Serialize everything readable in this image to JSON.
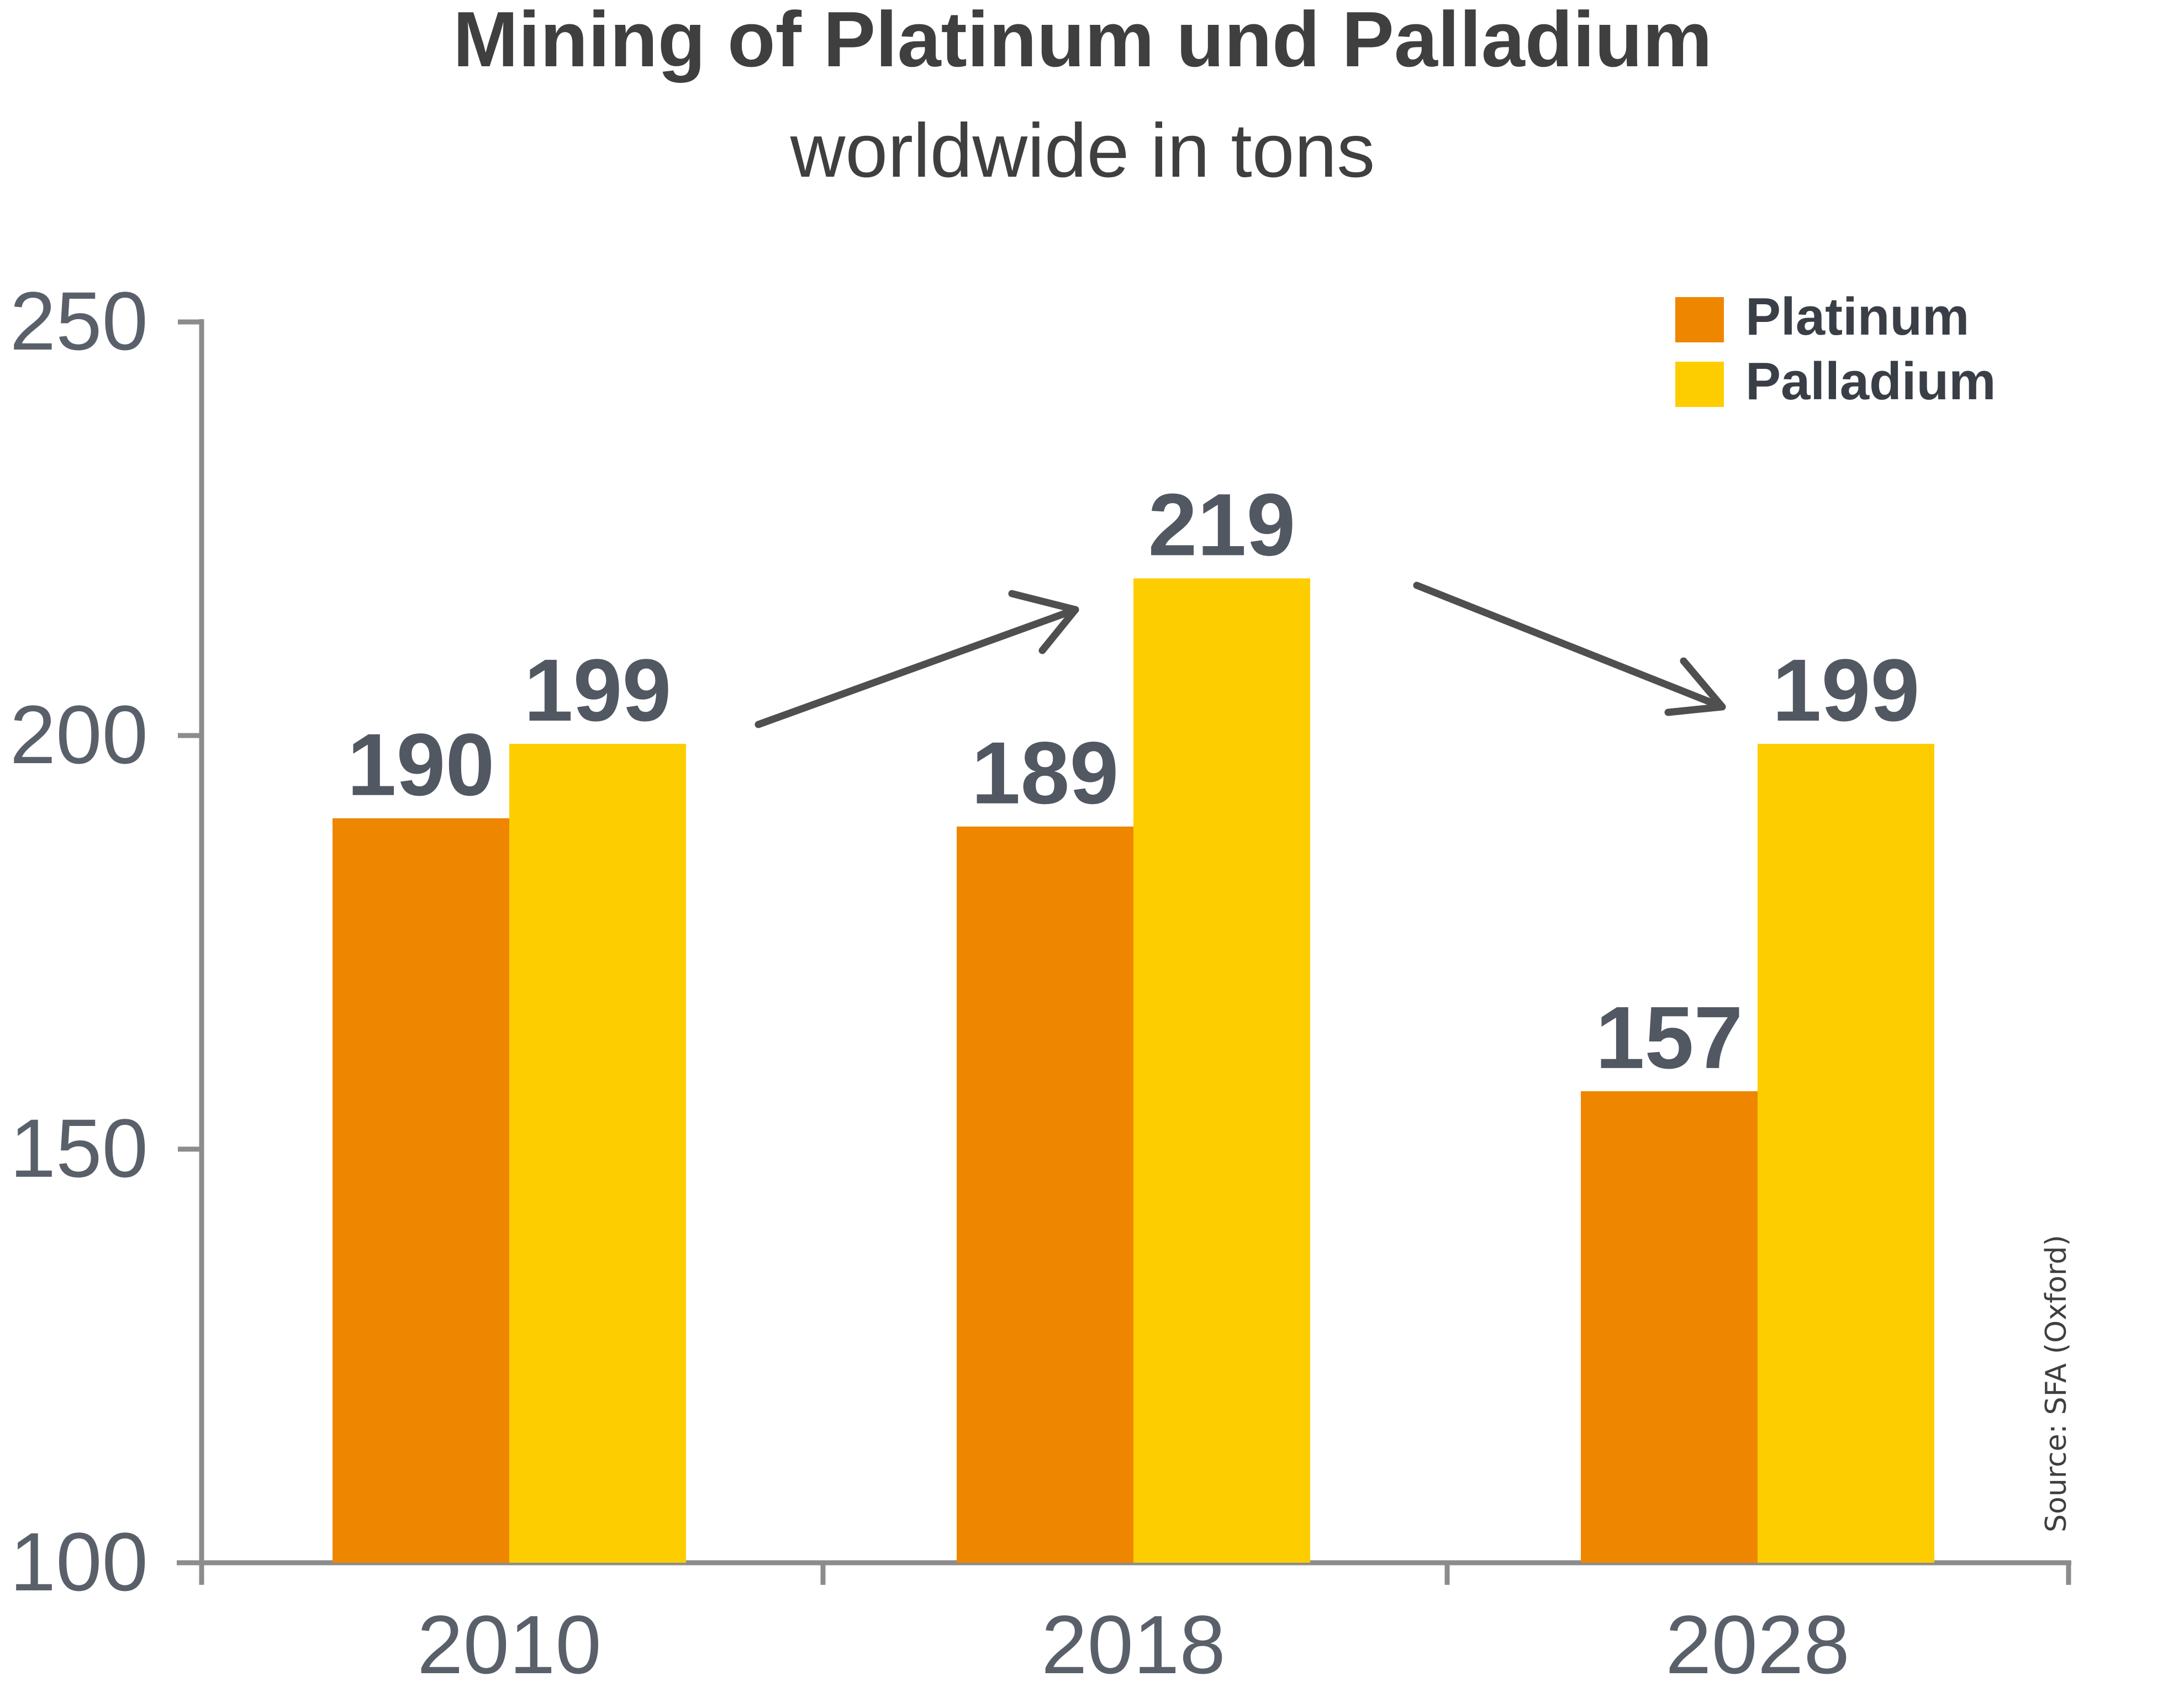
{
  "chart_data": {
    "type": "bar",
    "title": "Mining of Platinum und Palladium",
    "subtitle": "worldwide in tons",
    "categories": [
      "2010",
      "2018",
      "2028"
    ],
    "series": [
      {
        "name": "Platinum",
        "color": "#ee8600",
        "values": [
          190,
          189,
          157
        ]
      },
      {
        "name": "Palladium",
        "color": "#fecd00",
        "values": [
          199,
          219,
          199
        ]
      }
    ],
    "ylim": [
      100,
      250
    ],
    "yticks": [
      "100",
      "150",
      "200",
      "250"
    ],
    "xlabel": "",
    "ylabel": "",
    "legend_position": "top-right",
    "source": "Source:  SFA (Oxford)",
    "annotations": [
      "arrow-up-2010-to-2018",
      "arrow-down-2018-to-2028"
    ]
  }
}
